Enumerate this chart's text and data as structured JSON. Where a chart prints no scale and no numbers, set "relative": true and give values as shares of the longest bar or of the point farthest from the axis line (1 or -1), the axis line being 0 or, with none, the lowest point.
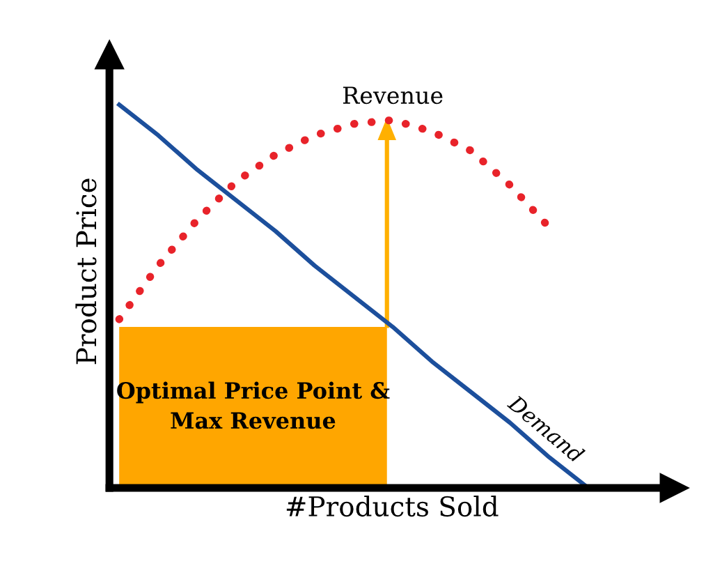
{
  "chart_data": {
    "type": "line",
    "relative": true,
    "xlabel": "#Products Sold",
    "ylabel": "Product Price",
    "categories": [
      null,
      null,
      null,
      null,
      null,
      null,
      null,
      null,
      null,
      null,
      null,
      null,
      null
    ],
    "series": [
      {
        "name": "Demand",
        "color": "#1c4f9c",
        "line_style": "solid",
        "values": [
          1,
          0.92,
          0.83,
          0.75,
          0.67,
          0.58,
          0.5,
          0.42,
          0.33,
          0.25,
          0.17,
          0.08,
          0
        ]
      },
      {
        "name": "Revenue",
        "color": "#e8232a",
        "line_style": "dotted",
        "values": [
          0.44,
          0.58,
          0.7,
          0.8,
          0.87,
          0.92,
          0.95,
          0.96,
          0.93,
          0.88,
          0.79,
          0.68,
          null
        ]
      }
    ],
    "annotations": [
      "Optimal Price Point & Max Revenue"
    ],
    "legend": false,
    "marker": "none"
  }
}
